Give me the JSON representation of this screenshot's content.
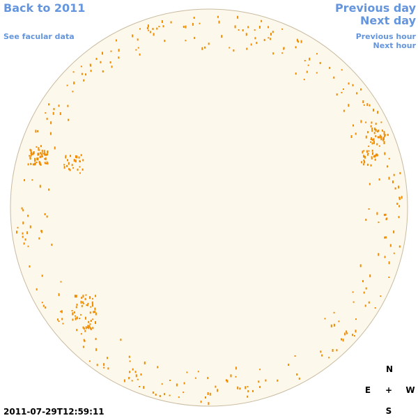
{
  "nav": {
    "back": "Back to 2011",
    "facular": "See facular data",
    "previous_day": "Previous day",
    "next_day": "Next day",
    "previous_hour": "Previous hour",
    "next_hour": "Next hour"
  },
  "timestamp": "2011-07-29T12:59:11",
  "compass": {
    "north": "N",
    "east": "E",
    "center": "+",
    "west": "W",
    "south": "S"
  }
}
